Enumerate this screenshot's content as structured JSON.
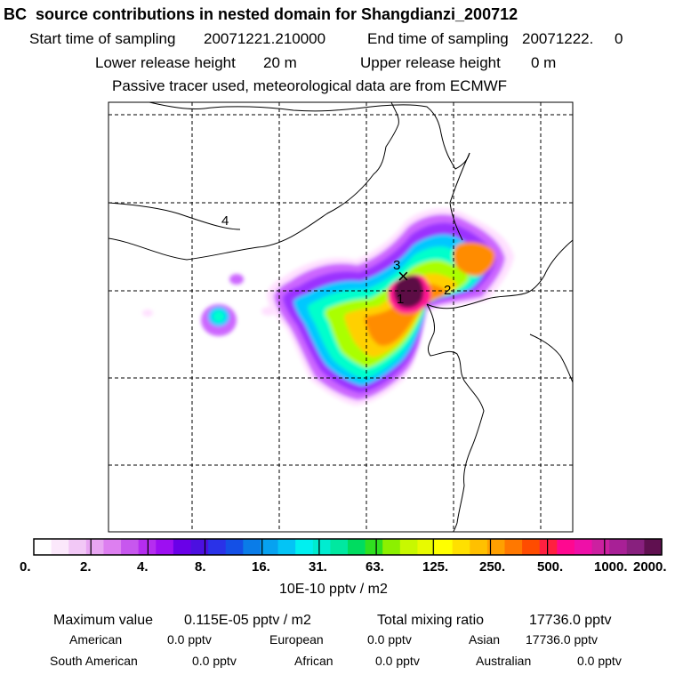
{
  "header": {
    "title": "BC  source contributions in nested domain for Shangdianzi_200712",
    "start_label": "Start time of sampling",
    "start_value": "20071221.210000",
    "end_label": "End time of sampling",
    "end_value": "20071222.     0",
    "lower_label": "Lower release height",
    "lower_value": "20 m",
    "upper_label": "Upper release height",
    "upper_value": "0 m",
    "note": "Passive tracer used, meteorological data are from ECMWF"
  },
  "map": {
    "markers": [
      "1",
      "2",
      "3",
      "4"
    ],
    "receptor_symbol": "×",
    "plume_colors": [
      "#ffe0ff",
      "#cc66ff",
      "#9b30ff",
      "#00c8ff",
      "#00ffcc",
      "#aaff00",
      "#ffd000",
      "#ff8c00",
      "#ff1493",
      "#5c0a45"
    ]
  },
  "colorbar": {
    "colors": [
      "#ffffff",
      "#fbe8fb",
      "#f2c8f6",
      "#e8a6f2",
      "#dd7ff0",
      "#c757ee",
      "#b52df0",
      "#9d0ff2",
      "#6a00e8",
      "#4c10e0",
      "#2a32e8",
      "#1450e6",
      "#0a7ce8",
      "#07a2f0",
      "#04c4f5",
      "#00f0f0",
      "#00ecd0",
      "#00e8a0",
      "#00dc60",
      "#30e020",
      "#8cf000",
      "#c8f800",
      "#e8fa00",
      "#ffff00",
      "#ffe000",
      "#ffc000",
      "#ffa000",
      "#ff7800",
      "#ff4c00",
      "#ff2040",
      "#ff0890",
      "#ee10a8",
      "#cc20a0",
      "#a82096",
      "#88207e",
      "#601050"
    ],
    "tick_labels": [
      "0.",
      "2.",
      "4.",
      "8.",
      "16.",
      "31.",
      "63.",
      "125.",
      "250.",
      "500.",
      "1000.",
      "2000."
    ],
    "unit": "10E-10 pptv / m2"
  },
  "stats": {
    "max_label": "Maximum value",
    "max_value": "0.115E-05 pptv / m2",
    "total_label": "Total mixing ratio",
    "total_value": "17736.0 pptv",
    "regions": [
      {
        "name": "American",
        "value": "0.0 pptv"
      },
      {
        "name": "European",
        "value": "0.0 pptv"
      },
      {
        "name": "Asian",
        "value": "17736.0 pptv"
      },
      {
        "name": "South American",
        "value": "0.0 pptv"
      },
      {
        "name": "African",
        "value": "0.0 pptv"
      },
      {
        "name": "Australian",
        "value": "0.0 pptv"
      }
    ]
  }
}
